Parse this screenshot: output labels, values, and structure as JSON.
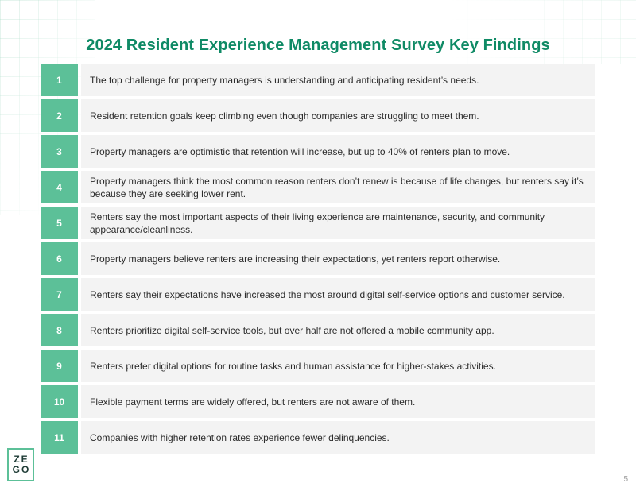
{
  "title": "2024 Resident Experience Management Survey Key Findings",
  "findings": [
    {
      "num": "1",
      "text": "The top challenge for property managers is understanding and anticipating resident’s needs."
    },
    {
      "num": "2",
      "text": "Resident retention goals keep climbing even though companies are struggling to meet them."
    },
    {
      "num": "3",
      "text": "Property managers are optimistic that retention will increase, but up to 40% of renters plan to move."
    },
    {
      "num": "4",
      "text": "Property managers think the most common reason renters don’t renew is because of life changes, but renters say it’s because they are seeking lower rent."
    },
    {
      "num": "5",
      "text": "Renters say the most important aspects of their living experience are maintenance, security, and community appearance/cleanliness."
    },
    {
      "num": "6",
      "text": "Property managers believe renters are increasing their expectations, yet renters report otherwise."
    },
    {
      "num": "7",
      "text": "Renters say their expectations have increased the most around digital self-service options and customer service."
    },
    {
      "num": "8",
      "text": "Renters prioritize digital self-service tools, but over half are not offered a mobile community app."
    },
    {
      "num": "9",
      "text": "Renters prefer digital options for routine tasks and human assistance for higher-stakes activities."
    },
    {
      "num": "10",
      "text": "Flexible payment terms are widely offered, but renters are not aware of them."
    },
    {
      "num": "11",
      "text": "Companies with higher retention rates experience fewer delinquencies."
    }
  ],
  "logo": {
    "line1": "ZE",
    "line2": "GO"
  },
  "page_number": "5",
  "colors": {
    "title": "#0f8a65",
    "number_box": "#5cc098",
    "row_bg": "#f3f3f3",
    "logo_border": "#5cc098"
  }
}
